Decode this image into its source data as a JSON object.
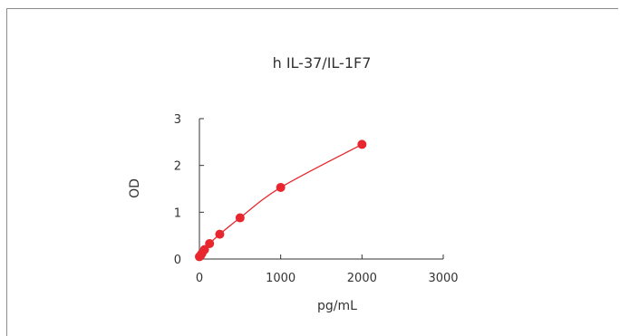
{
  "chart_data": {
    "type": "scatter",
    "title": "h IL-37/IL-1F7",
    "xlabel": "pg/mL",
    "ylabel": "OD",
    "xlim": [
      0,
      3000
    ],
    "ylim": [
      0,
      3
    ],
    "x_ticks": [
      "0",
      "1000",
      "2000",
      "3000"
    ],
    "y_ticks": [
      "0",
      "1",
      "2",
      "3"
    ],
    "grid": false,
    "legend": "none",
    "series": [
      {
        "x": [
          0,
          15.6,
          31.3,
          62.5,
          125,
          250,
          500,
          1000,
          2000
        ],
        "y": [
          0.05,
          0.08,
          0.12,
          0.2,
          0.33,
          0.53,
          0.88,
          1.53,
          2.45
        ],
        "color": "#e8262d",
        "fit": "curve"
      }
    ]
  }
}
